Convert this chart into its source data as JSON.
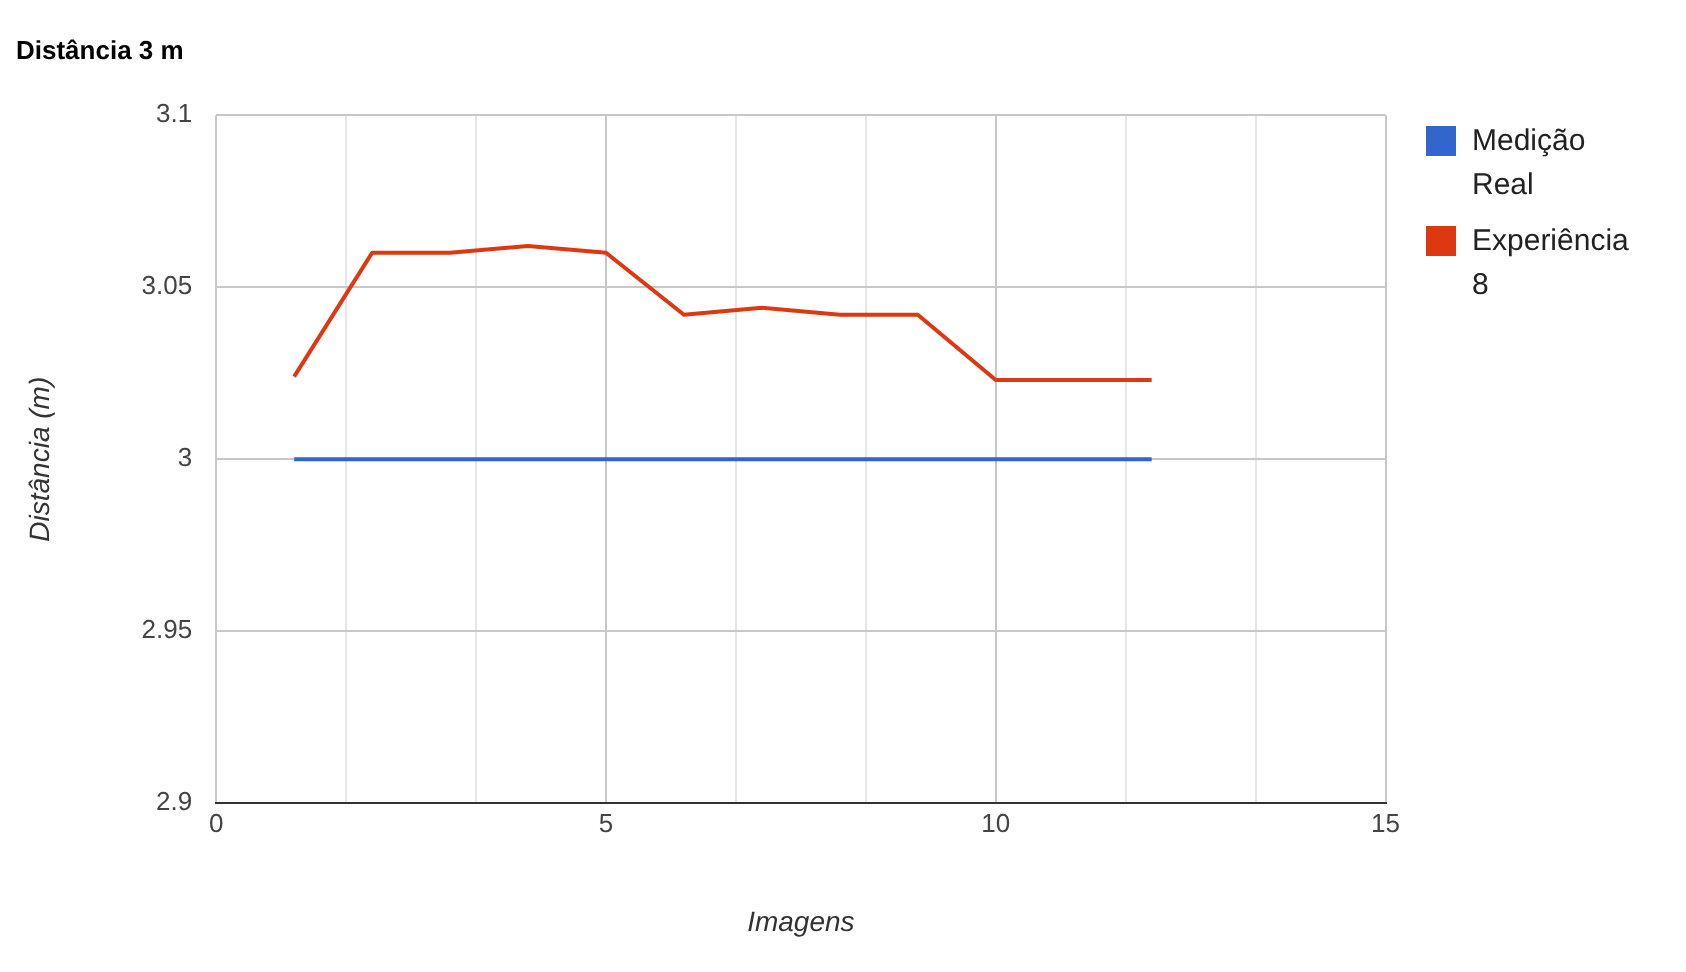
{
  "chart_data": {
    "type": "line",
    "title": "Distância 3 m",
    "xlabel": "Imagens",
    "ylabel": "Distância (m)",
    "x": [
      1,
      2,
      3,
      4,
      5,
      6,
      7,
      8,
      9,
      10,
      11,
      12
    ],
    "series": [
      {
        "name": "Medição Real",
        "color": "#3366cc",
        "values": [
          3,
          3,
          3,
          3,
          3,
          3,
          3,
          3,
          3,
          3,
          3,
          3
        ]
      },
      {
        "name": "Experiência 8",
        "color": "#dc3912",
        "values": [
          3.024,
          3.06,
          3.06,
          3.062,
          3.06,
          3.042,
          3.044,
          3.042,
          3.042,
          3.023,
          3.023,
          3.023
        ]
      }
    ],
    "xlim": [
      0,
      15
    ],
    "xticks": [
      0,
      {
        "value": 1.667,
        "label": null
      },
      {
        "value": 3.333,
        "label": null
      },
      5,
      {
        "value": 6.667,
        "label": null
      },
      {
        "value": 8.333,
        "label": null
      },
      10,
      {
        "value": 11.667,
        "label": null
      },
      {
        "value": 13.333,
        "label": null
      },
      15
    ],
    "ylim": [
      2.9,
      3.1
    ],
    "yticks": [
      2.9,
      2.95,
      3,
      3.05,
      3.1
    ],
    "grid": true,
    "legend": "top right",
    "marker": "none",
    "line_style": "solid"
  }
}
